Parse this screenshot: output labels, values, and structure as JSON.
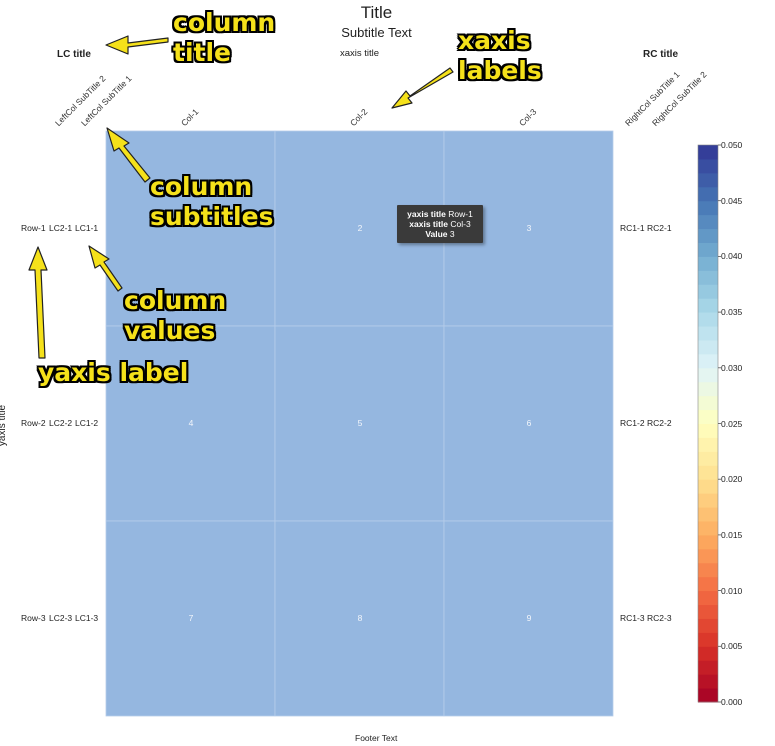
{
  "chart_data": {
    "type": "heatmap",
    "title": "Title",
    "subtitle": "Subtitle Text",
    "xlabel": "xaxis title",
    "ylabel": "yaxis title",
    "footer": "Footer Text",
    "columns": [
      "Col-1",
      "Col-2",
      "Col-3"
    ],
    "rows": [
      "Row-1",
      "Row-2",
      "Row-3"
    ],
    "cell_values": [
      [
        "",
        "2",
        "3"
      ],
      [
        "4",
        "5",
        "6"
      ],
      [
        "7",
        "8",
        "9"
      ]
    ],
    "cell_color": "#95b7e0",
    "left_columns": {
      "title": "LC title",
      "subtitles": [
        "LeftCol SubTitle 2",
        "LeftCol SubTitle 1"
      ],
      "values": [
        [
          "LC2-1",
          "LC1-1"
        ],
        [
          "LC2-2",
          "LC1-2"
        ],
        [
          "LC2-3",
          "LC1-3"
        ]
      ]
    },
    "right_columns": {
      "title": "RC title",
      "subtitles": [
        "RightCol SubTitle 1",
        "RightCol SubTitle 2"
      ],
      "values": [
        [
          "RC1-1",
          "RC2-1"
        ],
        [
          "RC1-2",
          "RC2-2"
        ],
        [
          "RC1-3",
          "RC2-3"
        ]
      ]
    },
    "colorbar": {
      "range": [
        0.0,
        0.05
      ],
      "ticks": [
        "0.000",
        "0.005",
        "0.010",
        "0.015",
        "0.020",
        "0.025",
        "0.030",
        "0.035",
        "0.040",
        "0.045",
        "0.050"
      ],
      "colors": [
        "#a50026",
        "#d73027",
        "#f46d43",
        "#fdae61",
        "#fee090",
        "#ffffbf",
        "#e0f3f8",
        "#abd9e9",
        "#74add1",
        "#4575b4",
        "#313695"
      ]
    },
    "tooltip": {
      "x_label": "yaxis title",
      "x_value": "Row-1",
      "y_label": "xaxis title",
      "y_value": "Col-3",
      "value_label": "Value",
      "value": "3"
    }
  },
  "annotations": {
    "column_title": [
      "column",
      "title"
    ],
    "xaxis_labels": [
      "xaxis",
      "labels"
    ],
    "column_subtitles": [
      "column",
      "subtitles"
    ],
    "column_values": [
      "column",
      "values"
    ],
    "yaxis_label": "yaxis label",
    "color": "#f5e11a"
  }
}
